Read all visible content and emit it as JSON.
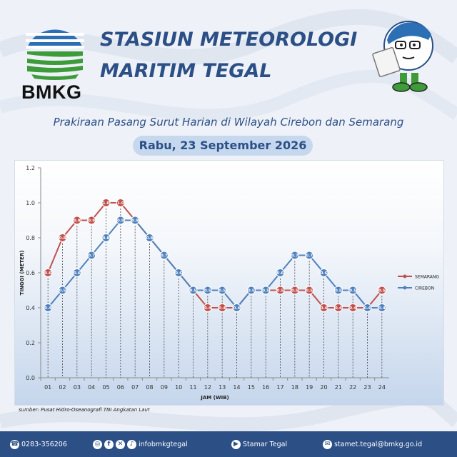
{
  "header": {
    "logo_text": "BMKG",
    "station_line1": "STASIUN METEOROLOGI",
    "station_line2": "MARITIM TEGAL",
    "subtitle": "Prakiraan Pasang Surut Harian di Wilayah Cirebon dan Semarang",
    "date": "Rabu, 23 September 2026"
  },
  "source": "sumber: Pusat Hidro-Oseanografi TNI Angkatan Laut",
  "footer": {
    "phone": "0283-356206",
    "social": "infobmkgtegal",
    "youtube": "Stamar Tegal",
    "email": "stamet.tegal@bmkg.go.id"
  },
  "colors": {
    "primary": "#2c4f86",
    "semarang": "#c0504d",
    "cirebon": "#4f81bd"
  },
  "chart_data": {
    "type": "line",
    "xlabel": "JAM (WIB)",
    "ylabel": "TINGGI (METER)",
    "ylim": [
      0.0,
      1.2
    ],
    "y_ticks": [
      "0.0",
      "0.2",
      "0.4",
      "0.6",
      "0.8",
      "1.0",
      "1.2"
    ],
    "x": [
      "01",
      "02",
      "03",
      "04",
      "05",
      "06",
      "07",
      "08",
      "09",
      "10",
      "11",
      "12",
      "13",
      "14",
      "15",
      "16",
      "17",
      "18",
      "19",
      "20",
      "21",
      "22",
      "23",
      "24"
    ],
    "grid": false,
    "legend": "right",
    "series": [
      {
        "name": "SEMARANG",
        "color": "#c0504d",
        "values": [
          0.6,
          0.8,
          0.9,
          0.9,
          1.0,
          1.0,
          0.9,
          0.8,
          0.7,
          0.6,
          0.5,
          0.4,
          0.4,
          0.4,
          0.5,
          0.5,
          0.5,
          0.5,
          0.5,
          0.4,
          0.4,
          0.4,
          0.4,
          0.5
        ]
      },
      {
        "name": "CIREBON",
        "color": "#4f81bd",
        "values": [
          0.4,
          0.5,
          0.6,
          0.7,
          0.8,
          0.9,
          0.9,
          0.8,
          0.7,
          0.6,
          0.5,
          0.5,
          0.5,
          0.4,
          0.5,
          0.5,
          0.6,
          0.7,
          0.7,
          0.6,
          0.5,
          0.5,
          0.4,
          0.4
        ]
      }
    ]
  }
}
